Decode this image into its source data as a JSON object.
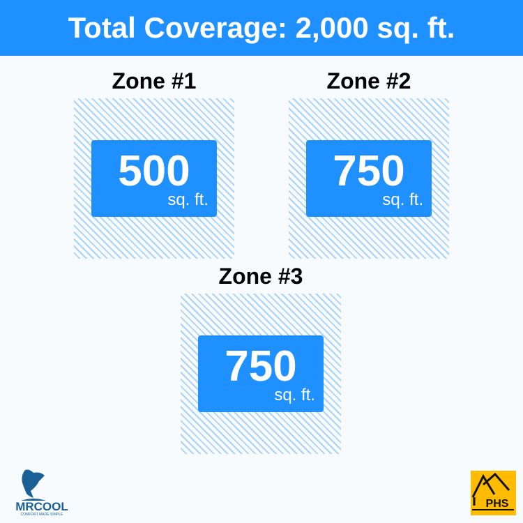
{
  "header": {
    "title": "Total Coverage: 2,000 sq. ft."
  },
  "zones": [
    {
      "label": "Zone #1",
      "area": "500",
      "unit": "sq. ft."
    },
    {
      "label": "Zone #2",
      "area": "750",
      "unit": "sq. ft."
    },
    {
      "label": "Zone #3",
      "area": "750",
      "unit": "sq. ft."
    }
  ],
  "logos": {
    "left": "MRCOOL",
    "left_tagline": "COMFORT MADE SIMPLE",
    "right": "PHS"
  },
  "colors": {
    "accent": "#1e90ff",
    "hatch": "#a9d2f7",
    "phs": "#ffbb00"
  }
}
